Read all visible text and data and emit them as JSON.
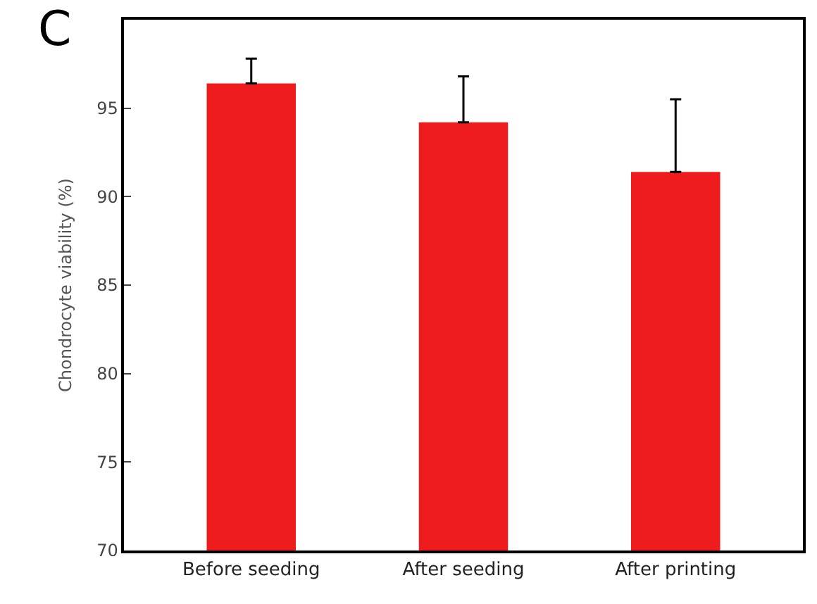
{
  "chart_data": {
    "type": "bar",
    "ylabel": "Chondrocyte viability (%)",
    "categories": [
      "Before seeding",
      "After seeding",
      "After printing"
    ],
    "values": [
      96.4,
      94.2,
      91.4
    ],
    "errors": [
      [
        96.4,
        97.8
      ],
      [
        94.2,
        96.8
      ],
      [
        91.4,
        95.5
      ]
    ],
    "color": "#ee1c1c",
    "ylim": [
      70,
      100
    ],
    "yticks": [
      70,
      75,
      80,
      85,
      90,
      95
    ],
    "annotations": [
      "C"
    ]
  }
}
